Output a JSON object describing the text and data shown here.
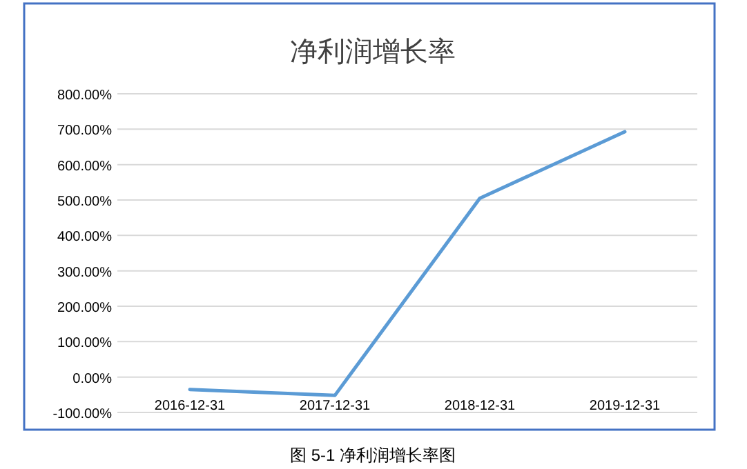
{
  "chart_data": {
    "type": "line",
    "title": "净利润增长率",
    "categories": [
      "2016-12-31",
      "2017-12-31",
      "2018-12-31",
      "2019-12-31"
    ],
    "series": [
      {
        "color": "#5b9bd5",
        "values": [
          -35,
          -52,
          505,
          693
        ]
      }
    ],
    "ylim": [
      -100,
      800
    ],
    "yticks": [
      {
        "value": -100,
        "label": "-100.00%"
      },
      {
        "value": 0,
        "label": "0.00%"
      },
      {
        "value": 100,
        "label": "100.00%"
      },
      {
        "value": 200,
        "label": "200.00%"
      },
      {
        "value": 300,
        "label": "300.00%"
      },
      {
        "value": 400,
        "label": "400.00%"
      },
      {
        "value": 500,
        "label": "500.00%"
      },
      {
        "value": 600,
        "label": "600.00%"
      },
      {
        "value": 700,
        "label": "700.00%"
      },
      {
        "value": 800,
        "label": "800.00%"
      }
    ],
    "grid": "y",
    "marker": "none",
    "line_style": "solid",
    "annotations": [
      "图 5-1  净利润增长率图"
    ]
  }
}
